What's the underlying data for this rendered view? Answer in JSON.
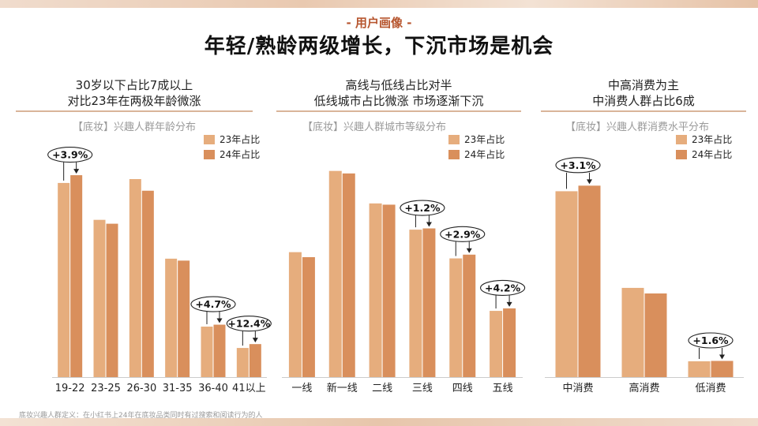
{
  "header": {
    "section_tag": "- 用户画像 -",
    "title": "年轻/熟龄两级增长，下沉市场是机会"
  },
  "legend": {
    "series_2023": "23年占比",
    "series_2024": "24年占比"
  },
  "colors": {
    "series_2023": "#e6ad7d",
    "series_2024": "#d98f5c",
    "rule": "#d9b59a",
    "accent": "#b7562f"
  },
  "panels": [
    {
      "headline1": "30岁以下占比7成以上",
      "headline2": "对比23年在两极年龄微涨",
      "subtitle": "【底妆】兴趣人群年龄分布"
    },
    {
      "headline1": "高线与低线占比对半",
      "headline2": "低线城市占比微涨 市场逐渐下沉",
      "subtitle": "【底妆】兴趣人群城市等级分布"
    },
    {
      "headline1": "中高消费为主",
      "headline2": "中消费人群占比6成",
      "subtitle": "【底妆】兴趣人群消费水平分布"
    }
  ],
  "chart_data": [
    {
      "type": "bar",
      "title": "【底妆】兴趣人群年龄分布",
      "categories": [
        "19-22",
        "23-25",
        "26-30",
        "31-35",
        "36-40",
        "41以上"
      ],
      "series": [
        {
          "name": "23年占比",
          "values": [
            100,
            81,
            102,
            61,
            26,
            15
          ]
        },
        {
          "name": "24年占比",
          "values": [
            104,
            79,
            96,
            60,
            27,
            17
          ]
        }
      ],
      "ylim": [
        0,
        115
      ],
      "annotations": [
        {
          "category": "19-22",
          "label": "+3.9%"
        },
        {
          "category": "36-40",
          "label": "+4.7%"
        },
        {
          "category": "41以上",
          "label": "+12.4%"
        }
      ]
    },
    {
      "type": "bar",
      "title": "【底妆】兴趣人群城市等级分布",
      "categories": [
        "一线",
        "新一线",
        "二线",
        "三线",
        "四线",
        "五线"
      ],
      "series": [
        {
          "name": "23年占比",
          "values": [
            100,
            165,
            139,
            118,
            95,
            53
          ]
        },
        {
          "name": "24年占比",
          "values": [
            96,
            163,
            138,
            119,
            98,
            55
          ]
        }
      ],
      "ylim": [
        0,
        185
      ],
      "annotations": [
        {
          "category": "三线",
          "label": "+1.2%"
        },
        {
          "category": "四线",
          "label": "+2.9%"
        },
        {
          "category": "五线",
          "label": "+4.2%"
        }
      ]
    },
    {
      "type": "bar",
      "title": "【底妆】兴趣人群消费水平分布",
      "categories": [
        "中消费",
        "高消费",
        "低消费"
      ],
      "series": [
        {
          "name": "23年占比",
          "values": [
            100,
            48,
            8.5
          ]
        },
        {
          "name": "24年占比",
          "values": [
            103,
            45,
            8.7
          ]
        }
      ],
      "ylim": [
        0,
        118
      ],
      "annotations": [
        {
          "category": "中消费",
          "label": "+3.1%"
        },
        {
          "category": "低消费",
          "label": "+1.6%"
        }
      ]
    }
  ],
  "footnote": "底妆兴趣人群定义：在小红书上24年在底妆品类同时有过搜索和阅读行为的人"
}
